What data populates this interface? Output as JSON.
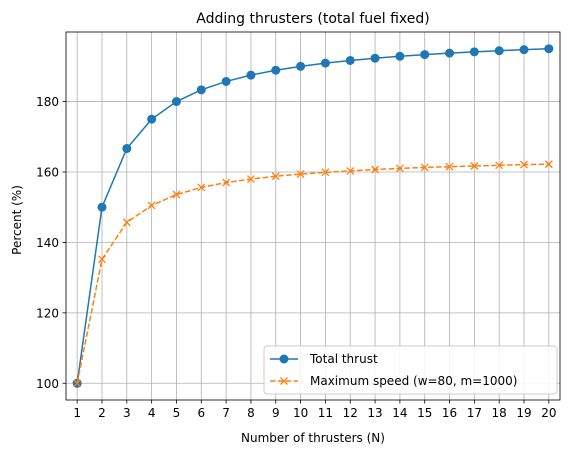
{
  "chart_data": {
    "type": "line",
    "title": "Adding thrusters (total fuel fixed)",
    "xlabel": "Number of thrusters (N)",
    "ylabel": "Percent (%)",
    "x": [
      1,
      2,
      3,
      4,
      5,
      6,
      7,
      8,
      9,
      10,
      11,
      12,
      13,
      14,
      15,
      16,
      17,
      18,
      19,
      20
    ],
    "xlim": [
      0.55,
      20.45
    ],
    "ylim": [
      95.25,
      199.75
    ],
    "yticks": [
      100,
      120,
      140,
      160,
      180
    ],
    "grid": true,
    "legend_position": "lower-right",
    "series": [
      {
        "name": "Total thrust",
        "color": "#1f77b4",
        "linestyle": "solid",
        "marker": "circle",
        "values": [
          100,
          150,
          166.67,
          175,
          180,
          183.33,
          185.71,
          187.5,
          188.89,
          190,
          190.91,
          191.67,
          192.31,
          192.86,
          193.33,
          193.75,
          194.12,
          194.44,
          194.74,
          195
        ]
      },
      {
        "name": "Maximum speed (w=80, m=1000)",
        "color": "#ff7f0e",
        "linestyle": "dashed",
        "marker": "x",
        "values": [
          100,
          135.2,
          145.7,
          150.5,
          153.6,
          155.6,
          157.0,
          158.0,
          158.8,
          159.4,
          159.9,
          160.3,
          160.7,
          161.0,
          161.3,
          161.5,
          161.7,
          161.9,
          162.1,
          162.2
        ]
      }
    ]
  }
}
